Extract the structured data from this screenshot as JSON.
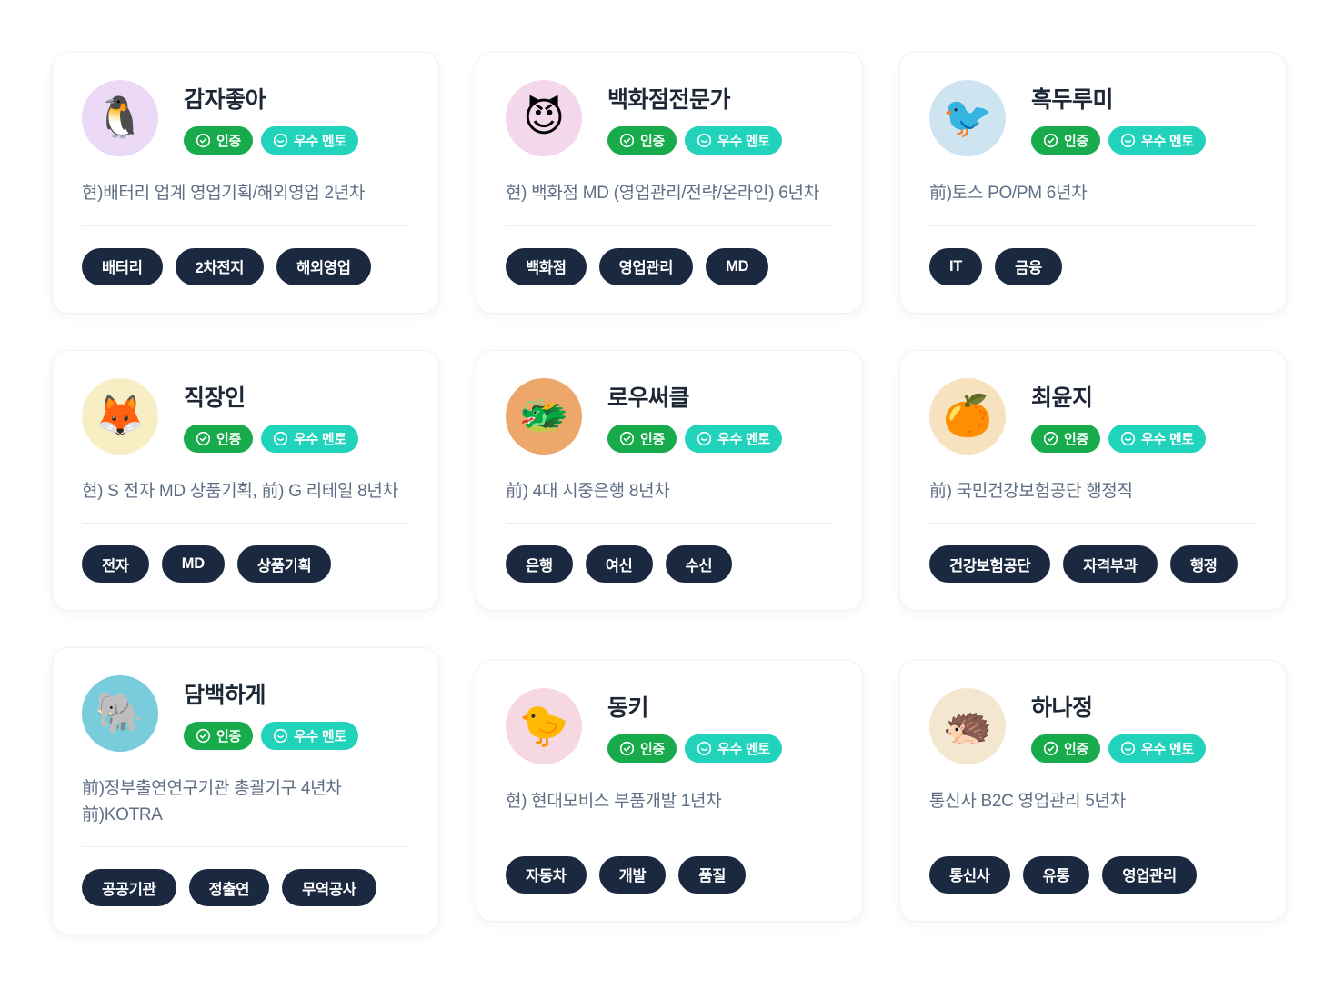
{
  "badges": {
    "verified": "인증",
    "excellent": "우수 멘토"
  },
  "colors": {
    "verified_bg": "#18ab4b",
    "excellent_bg": "#22d3bb",
    "tag_bg": "#1b2940",
    "name_text": "#1d2735",
    "description_text": "#5f6e85"
  },
  "cards": [
    {
      "name": "감자좋아",
      "description_lines": [
        "현)배터리 업계 영업기획/해외영업 2년차"
      ],
      "tags": [
        "배터리",
        "2차전지",
        "해외영업"
      ],
      "avatar": {
        "emoji": "🐧",
        "bg": "#ecd9f5",
        "name": "penguin-avatar"
      }
    },
    {
      "name": "백화점전문가",
      "description_lines": [
        "현) 백화점 MD (영업관리/전략/온라인) 6년차"
      ],
      "tags": [
        "백화점",
        "영업관리",
        "MD"
      ],
      "avatar": {
        "emoji": "😈",
        "bg": "#f3d7ea",
        "name": "devil-avatar"
      }
    },
    {
      "name": "흑두루미",
      "description_lines": [
        "前)토스 PO/PM 6년차"
      ],
      "tags": [
        "IT",
        "금융"
      ],
      "avatar": {
        "emoji": "🐦",
        "bg": "#cfe4f1",
        "name": "crane-avatar"
      }
    },
    {
      "name": "직장인",
      "description_lines": [
        "현) S 전자 MD 상품기획, 前) G 리테일 8년차"
      ],
      "tags": [
        "전자",
        "MD",
        "상품기획"
      ],
      "avatar": {
        "emoji": "🦊",
        "bg": "#f7efc3",
        "name": "astronaut-fox-avatar"
      }
    },
    {
      "name": "로우써클",
      "description_lines": [
        "前) 4대 시중은행 8년차"
      ],
      "tags": [
        "은행",
        "여신",
        "수신"
      ],
      "avatar": {
        "emoji": "🐲",
        "bg": "#eda76b",
        "name": "dragon-avatar"
      }
    },
    {
      "name": "최윤지",
      "description_lines": [
        "前) 국민건강보험공단 행정직"
      ],
      "tags": [
        "건강보험공단",
        "자격부과",
        "행정"
      ],
      "avatar": {
        "emoji": "🍊",
        "bg": "#f7e2c0",
        "name": "tangerine-party-avatar"
      }
    },
    {
      "name": "담백하게",
      "description_lines": [
        "前)정부출연연구기관 총괄기구 4년차",
        "前)KOTRA"
      ],
      "tags": [
        "공공기관",
        "정출연",
        "무역공사"
      ],
      "avatar": {
        "emoji": "🐘",
        "bg": "#79ccdb",
        "name": "elephant-avatar"
      }
    },
    {
      "name": "동키",
      "description_lines": [
        "현) 현대모비스 부품개발 1년차"
      ],
      "tags": [
        "자동차",
        "개발",
        "품질"
      ],
      "avatar": {
        "emoji": "🐤",
        "bg": "#f6d8e2",
        "name": "ostrich-avatar"
      }
    },
    {
      "name": "하나정",
      "description_lines": [
        "통신사 B2C 영업관리 5년차"
      ],
      "tags": [
        "통신사",
        "유통",
        "영업관리"
      ],
      "avatar": {
        "emoji": "🦔",
        "bg": "#f3e7cf",
        "name": "hedgehog-avatar"
      }
    }
  ]
}
